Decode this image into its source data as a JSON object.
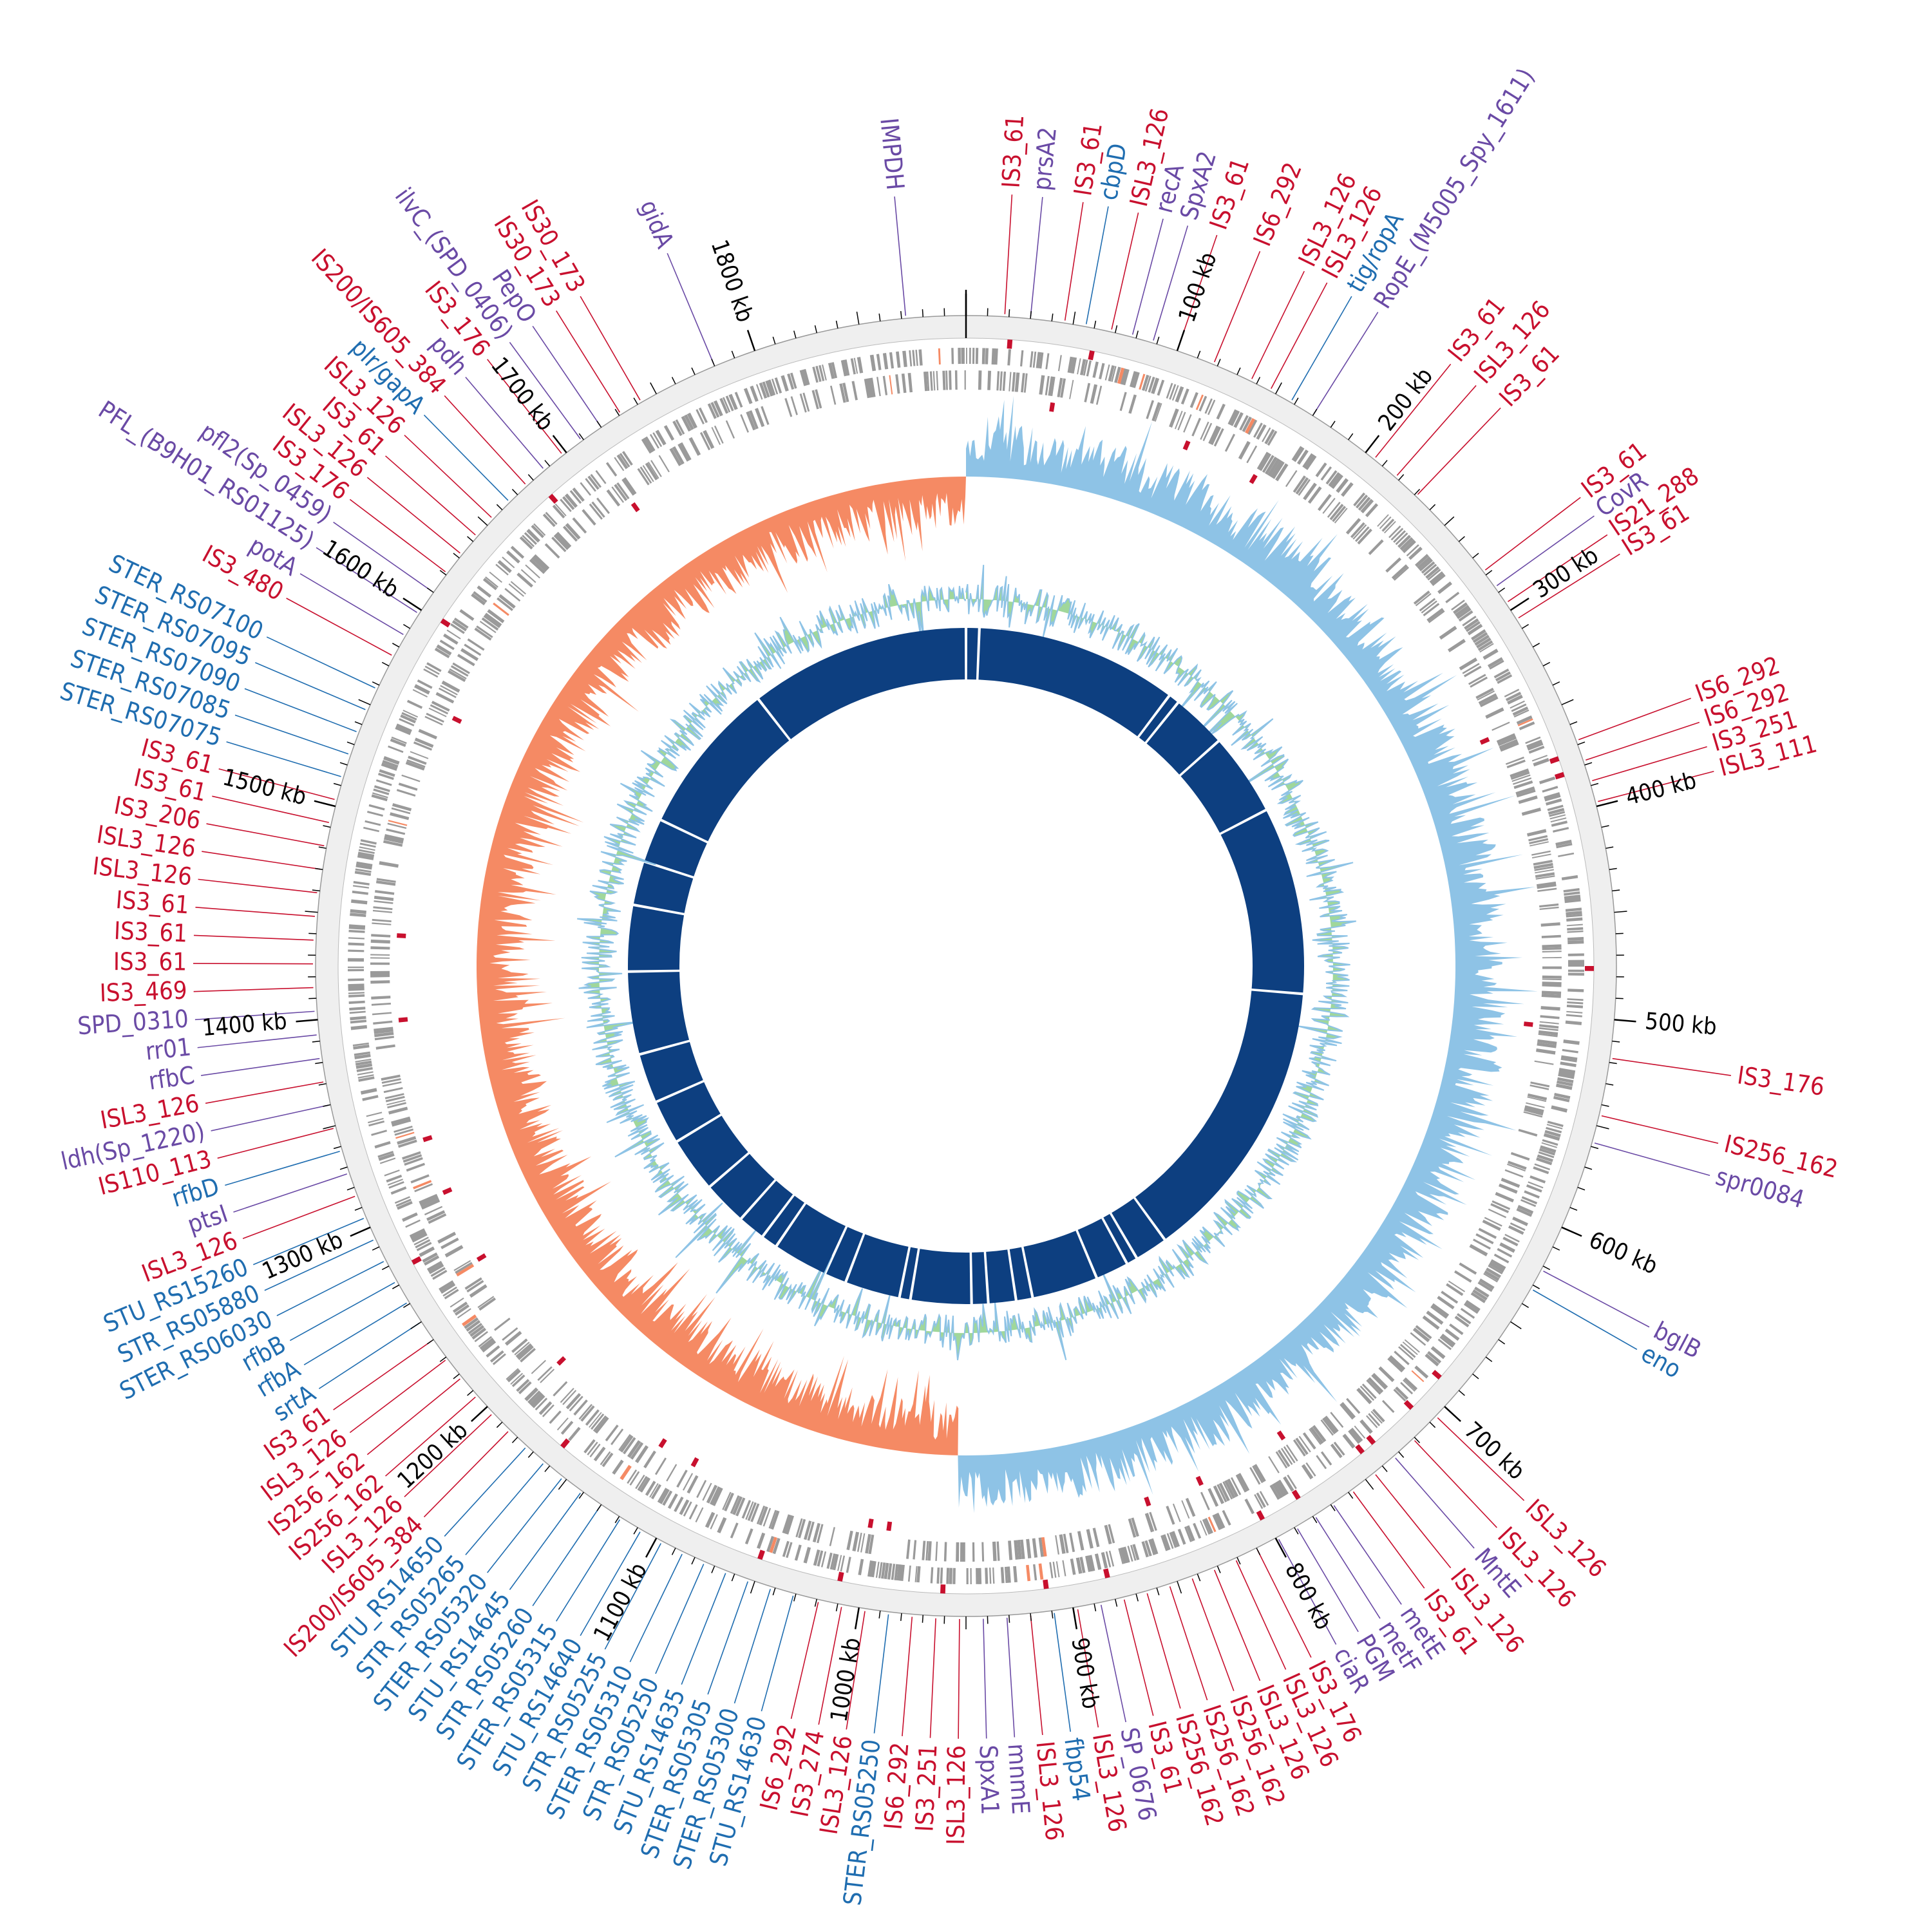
{
  "genome": {
    "length_kb": 1900,
    "colors": {
      "red": "#c8102e",
      "blue": "#1f6db0",
      "purple": "#6a4aa5",
      "gc_skew_pos": "#8ec3e6",
      "gc_skew_neg": "#f58a64",
      "gc_content": "#8fd08a",
      "gc_content_alt": "#8ec3e6",
      "backbone": "#0d3f80",
      "cds": "#9a9a9a",
      "ruler": "#efefef"
    },
    "kb_ticks": [
      "100 kb",
      "200 kb",
      "300 kb",
      "400 kb",
      "500 kb",
      "600 kb",
      "700 kb",
      "800 kb",
      "900 kb",
      "1000 kb",
      "1100 kb",
      "1200 kb",
      "1300 kb",
      "1400 kb",
      "1500 kb",
      "1600 kb",
      "1700 kb",
      "1800 kb"
    ],
    "kb_tick_values": [
      100,
      200,
      300,
      400,
      500,
      600,
      700,
      800,
      900,
      1000,
      1100,
      1200,
      1300,
      1400,
      1500,
      1600,
      1700,
      1800
    ],
    "backbone_gaps_kb": [
      12,
      195,
      205,
      255,
      330,
      500,
      760,
      790,
      800,
      830,
      890,
      905,
      930,
      945,
      1000,
      1010,
      1060,
      1080,
      1130,
      1145,
      1170,
      1210,
      1260,
      1300,
      1345,
      1420,
      1480,
      1520,
      1560,
      1700
    ],
    "gene_labels": [
      {
        "text": "IMPDH",
        "kb": -28,
        "c": "purple"
      },
      {
        "text": "IS3_61",
        "kb": 18,
        "c": "red"
      },
      {
        "text": "prsA2",
        "kb": 30,
        "c": "purple"
      },
      {
        "text": "IS3_61",
        "kb": 46,
        "c": "red"
      },
      {
        "text": "cbpD",
        "kb": 56,
        "c": "blue"
      },
      {
        "text": "ISL3_126",
        "kb": 68,
        "c": "red"
      },
      {
        "text": "recA",
        "kb": 78,
        "c": "purple"
      },
      {
        "text": "SpxA2",
        "kb": 88,
        "c": "purple"
      },
      {
        "text": "IS3_61",
        "kb": 100,
        "c": "red"
      },
      {
        "text": "IS6_292",
        "kb": 118,
        "c": "red"
      },
      {
        "text": "ISL3_126",
        "kb": 137,
        "c": "red"
      },
      {
        "text": "ISL3_126",
        "kb": 147,
        "c": "red"
      },
      {
        "text": "tig/ropA",
        "kb": 158,
        "c": "blue"
      },
      {
        "text": "RopE_(M5005_Spy_1611)",
        "kb": 170,
        "c": "purple"
      },
      {
        "text": "IS3_61",
        "kb": 205,
        "c": "red"
      },
      {
        "text": "ISL3_126",
        "kb": 218,
        "c": "red"
      },
      {
        "text": "IS3_61",
        "kb": 231,
        "c": "red"
      },
      {
        "text": "IS3_61",
        "kb": 278,
        "c": "red"
      },
      {
        "text": "CovR",
        "kb": 287,
        "c": "purple"
      },
      {
        "text": "IS21_288",
        "kb": 296,
        "c": "red"
      },
      {
        "text": "IS3_61",
        "kb": 305,
        "c": "red"
      },
      {
        "text": "IS6_292",
        "kb": 368,
        "c": "red"
      },
      {
        "text": "IS6_292",
        "kb": 378,
        "c": "red"
      },
      {
        "text": "IS3_251",
        "kb": 388,
        "c": "red"
      },
      {
        "text": "ISL3_111",
        "kb": 398,
        "c": "red"
      },
      {
        "text": "IS3_176",
        "kb": 518,
        "c": "red"
      },
      {
        "text": "IS256_162",
        "kb": 545,
        "c": "red"
      },
      {
        "text": "spr0084",
        "kb": 558,
        "c": "purple"
      },
      {
        "text": "bglB",
        "kb": 622,
        "c": "purple"
      },
      {
        "text": "eno",
        "kb": 632,
        "c": "blue"
      },
      {
        "text": "ISL3_126",
        "kb": 706,
        "c": "red"
      },
      {
        "text": "ISL3_126",
        "kb": 721,
        "c": "red"
      },
      {
        "text": "MntE",
        "kb": 733,
        "c": "purple"
      },
      {
        "text": "ISL3_126",
        "kb": 745,
        "c": "red"
      },
      {
        "text": "IS3_61",
        "kb": 758,
        "c": "red"
      },
      {
        "text": "metE",
        "kb": 769,
        "c": "purple"
      },
      {
        "text": "metF",
        "kb": 779,
        "c": "purple"
      },
      {
        "text": "PGM",
        "kb": 789,
        "c": "purple"
      },
      {
        "text": "ciaR",
        "kb": 799,
        "c": "purple"
      },
      {
        "text": "IS3_176",
        "kb": 810,
        "c": "red"
      },
      {
        "text": "ISL3_126",
        "kb": 821,
        "c": "red"
      },
      {
        "text": "ISL3_126",
        "kb": 832,
        "c": "red"
      },
      {
        "text": "IS256_162",
        "kb": 843,
        "c": "red"
      },
      {
        "text": "IS256_162",
        "kb": 854,
        "c": "red"
      },
      {
        "text": "IS256_162",
        "kb": 865,
        "c": "red"
      },
      {
        "text": "IS3_61",
        "kb": 876,
        "c": "red"
      },
      {
        "text": "SP_0676",
        "kb": 887,
        "c": "purple"
      },
      {
        "text": "ISL3_126",
        "kb": 898,
        "c": "red"
      },
      {
        "text": "fbp54",
        "kb": 909,
        "c": "blue"
      },
      {
        "text": "ISL3_126",
        "kb": 920,
        "c": "red"
      },
      {
        "text": "mnmE",
        "kb": 931,
        "c": "purple"
      },
      {
        "text": "SpxA1",
        "kb": 942,
        "c": "purple"
      },
      {
        "text": "ISL3_126",
        "kb": 953,
        "c": "red"
      },
      {
        "text": "IS3_251",
        "kb": 964,
        "c": "red"
      },
      {
        "text": "IS6_292",
        "kb": 975,
        "c": "red"
      },
      {
        "text": "STER_RS05250",
        "kb": 986,
        "c": "blue"
      },
      {
        "text": "ISL3_126",
        "kb": 997,
        "c": "red"
      },
      {
        "text": "IS3_274",
        "kb": 1008,
        "c": "red"
      },
      {
        "text": "IS6_292",
        "kb": 1019,
        "c": "red"
      },
      {
        "text": "STU_RS14630",
        "kb": 1031,
        "c": "blue"
      },
      {
        "text": "STER_RS05300",
        "kb": 1042,
        "c": "blue"
      },
      {
        "text": "STER_RS05305",
        "kb": 1053,
        "c": "blue"
      },
      {
        "text": "STU_RS14635",
        "kb": 1064,
        "c": "blue"
      },
      {
        "text": "STR_RS05250",
        "kb": 1075,
        "c": "blue"
      },
      {
        "text": "STER_RS05310",
        "kb": 1086,
        "c": "blue"
      },
      {
        "text": "STR_RS05255",
        "kb": 1097,
        "c": "blue"
      },
      {
        "text": "STU_RS14640",
        "kb": 1108,
        "c": "blue"
      },
      {
        "text": "STER_RS05315",
        "kb": 1119,
        "c": "blue"
      },
      {
        "text": "STR_RS05260",
        "kb": 1130,
        "c": "blue"
      },
      {
        "text": "STU_RS14645",
        "kb": 1141,
        "c": "blue"
      },
      {
        "text": "STER_RS05320",
        "kb": 1152,
        "c": "blue"
      },
      {
        "text": "STR_RS05265",
        "kb": 1163,
        "c": "blue"
      },
      {
        "text": "STU_RS14650",
        "kb": 1174,
        "c": "blue"
      },
      {
        "text": "IS200/IS605_384",
        "kb": 1185,
        "c": "red"
      },
      {
        "text": "ISL3_126",
        "kb": 1196,
        "c": "red"
      },
      {
        "text": "IS256_162",
        "kb": 1207,
        "c": "red"
      },
      {
        "text": "IS256_162",
        "kb": 1218,
        "c": "red"
      },
      {
        "text": "ISL3_126",
        "kb": 1229,
        "c": "red"
      },
      {
        "text": "IS3_61",
        "kb": 1240,
        "c": "red"
      },
      {
        "text": "srtA",
        "kb": 1250,
        "c": "blue"
      },
      {
        "text": "rfbA",
        "kb": 1261,
        "c": "blue"
      },
      {
        "text": "rfbB",
        "kb": 1272,
        "c": "blue"
      },
      {
        "text": "STER_RS06030",
        "kb": 1283,
        "c": "blue"
      },
      {
        "text": "STR_RS05880",
        "kb": 1294,
        "c": "blue"
      },
      {
        "text": "STU_RS15260",
        "kb": 1305,
        "c": "blue"
      },
      {
        "text": "ISL3_126",
        "kb": 1316,
        "c": "red"
      },
      {
        "text": "ptsI",
        "kb": 1327,
        "c": "purple"
      },
      {
        "text": "rfbD",
        "kb": 1338,
        "c": "blue"
      },
      {
        "text": "IS110_113",
        "kb": 1349,
        "c": "red"
      },
      {
        "text": "ldh(Sp_1220)",
        "kb": 1360,
        "c": "purple"
      },
      {
        "text": "ISL3_126",
        "kb": 1371,
        "c": "red"
      },
      {
        "text": "rfbC",
        "kb": 1382,
        "c": "purple"
      },
      {
        "text": "rr01",
        "kb": 1393,
        "c": "purple"
      },
      {
        "text": "SPD_0310",
        "kb": 1404,
        "c": "purple"
      },
      {
        "text": "IS3_469",
        "kb": 1415,
        "c": "red"
      },
      {
        "text": "IS3_61",
        "kb": 1426,
        "c": "red"
      },
      {
        "text": "IS3_61",
        "kb": 1437,
        "c": "red"
      },
      {
        "text": "IS3_61",
        "kb": 1448,
        "c": "red"
      },
      {
        "text": "ISL3_126",
        "kb": 1459,
        "c": "red"
      },
      {
        "text": "ISL3_126",
        "kb": 1470,
        "c": "red"
      },
      {
        "text": "IS3_206",
        "kb": 1481,
        "c": "red"
      },
      {
        "text": "IS3_61",
        "kb": 1492,
        "c": "red"
      },
      {
        "text": "IS3_61",
        "kb": 1503,
        "c": "red"
      },
      {
        "text": "STER_RS07075",
        "kb": 1514,
        "c": "blue"
      },
      {
        "text": "STER_RS07085",
        "kb": 1525,
        "c": "blue"
      },
      {
        "text": "STER_RS07090",
        "kb": 1536,
        "c": "blue"
      },
      {
        "text": "STER_RS07095",
        "kb": 1547,
        "c": "blue"
      },
      {
        "text": "STER_RS07100",
        "kb": 1558,
        "c": "blue"
      },
      {
        "text": "IS3_480",
        "kb": 1575,
        "c": "red"
      },
      {
        "text": "potA",
        "kb": 1586,
        "c": "purple"
      },
      {
        "text": "PFL_(B9H01_RS01125)",
        "kb": 1598,
        "c": "purple"
      },
      {
        "text": "pfl2(Sp_0459)",
        "kb": 1610,
        "c": "purple"
      },
      {
        "text": "IS3_176",
        "kb": 1621,
        "c": "red"
      },
      {
        "text": "ISL3_126",
        "kb": 1632,
        "c": "red"
      },
      {
        "text": "IS3_61",
        "kb": 1643,
        "c": "red"
      },
      {
        "text": "ISL3_126",
        "kb": 1654,
        "c": "red"
      },
      {
        "text": "plr/gapA",
        "kb": 1665,
        "c": "blue"
      },
      {
        "text": "IS200/IS605_384",
        "kb": 1676,
        "c": "red"
      },
      {
        "text": "pdh",
        "kb": 1687,
        "c": "purple"
      },
      {
        "text": "IS3_176",
        "kb": 1698,
        "c": "red"
      },
      {
        "text": "ilvC_(SPD_0406)",
        "kb": 1709,
        "c": "purple"
      },
      {
        "text": "PepO",
        "kb": 1720,
        "c": "purple"
      },
      {
        "text": "IS30_173",
        "kb": 1731,
        "c": "red"
      },
      {
        "text": "IS30_173",
        "kb": 1742,
        "c": "red"
      },
      {
        "text": "gidA",
        "kb": 1780,
        "c": "purple"
      }
    ]
  }
}
